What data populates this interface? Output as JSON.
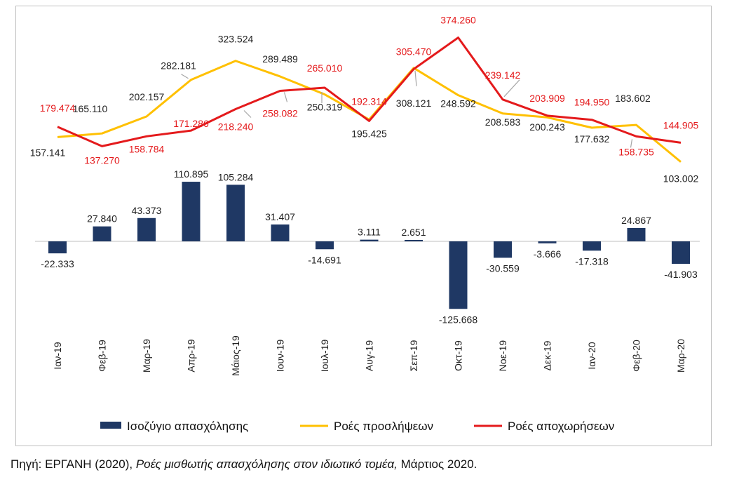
{
  "chart_data": {
    "type": "bar",
    "categories": [
      "Ιαν-19",
      "Φεβ-19",
      "Μαρ-19",
      "Απρ-19",
      "Μάιος-19",
      "Ιουν-19",
      "Ιουλ-19",
      "Αυγ-19",
      "Σεπ-19",
      "Οκτ-19",
      "Νοε-19",
      "Δεκ-19",
      "Ιαν-20",
      "Φεβ-20",
      "Μαρ-20"
    ],
    "series": [
      {
        "name": "Ισοζύγιο απασχόλησης",
        "kind": "bar",
        "color": "#1f3864",
        "values": [
          -22333,
          27840,
          43373,
          110895,
          105284,
          31407,
          -14691,
          3111,
          2651,
          -125668,
          -30559,
          -3666,
          -17318,
          24867,
          -41903
        ],
        "labels": [
          "-22.333",
          "27.840",
          "43.373",
          "110.895",
          "105.284",
          "31.407",
          "-14.691",
          "3.111",
          "2.651",
          "-125.668",
          "-30.559",
          "-3.666",
          "-17.318",
          "24.867",
          "-41.903"
        ]
      },
      {
        "name": "Ροές προσλήψεων",
        "kind": "line",
        "color": "#ffc000",
        "values": [
          157141,
          165110,
          202157,
          282181,
          323524,
          289489,
          250319,
          195425,
          308121,
          248592,
          208583,
          200243,
          177632,
          183602,
          103002
        ],
        "labels": [
          "157.141",
          "165.110",
          "202.157",
          "282.181",
          "323.524",
          "289.489",
          "250.319",
          "195.425",
          "308.121",
          "248.592",
          "208.583",
          "200.243",
          "177.632",
          "183.602",
          "103.002"
        ]
      },
      {
        "name": "Ροές αποχωρήσεων",
        "kind": "line",
        "color": "#e41a1c",
        "values": [
          179474,
          137270,
          158784,
          171286,
          218240,
          258082,
          265010,
          192314,
          305470,
          374260,
          239142,
          203909,
          194950,
          158735,
          144905
        ],
        "labels": [
          "179.474",
          "137.270",
          "158.784",
          "171.286",
          "218.240",
          "258.082",
          "265.010",
          "192.314",
          "305.470",
          "374.260",
          "239.142",
          "203.909",
          "194.950",
          "158.735",
          "144.905"
        ]
      }
    ],
    "legend_position": "bottom",
    "grid": false
  },
  "source": {
    "prefix": "Πηγή: ΕΡΓΑΝΗ (2020), ",
    "title_italic": "Ροές μισθωτής απασχόλησης στον ιδιωτικό τομέα,",
    "suffix": " Μάρτιος 2020."
  }
}
